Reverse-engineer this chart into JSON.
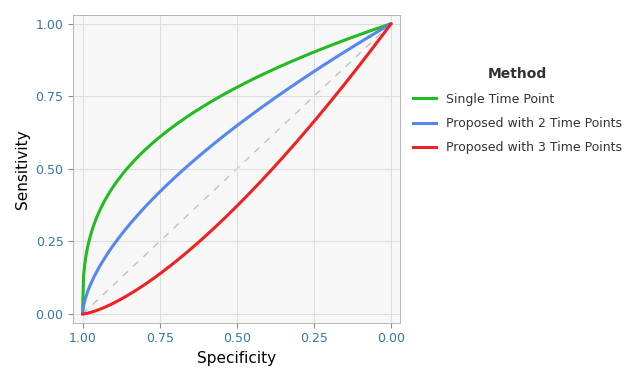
{
  "title": "",
  "xlabel": "Specificity",
  "ylabel": "Sensitivity",
  "xlim": [
    1.03,
    -0.03
  ],
  "ylim": [
    -0.03,
    1.03
  ],
  "xticks": [
    1.0,
    0.75,
    0.5,
    0.25,
    0.0
  ],
  "yticks": [
    0.0,
    0.25,
    0.5,
    0.75,
    1.0
  ],
  "background_color": "#FFFFFF",
  "plot_bg_color": "#F7F7F7",
  "grid_color": "#DDDDDD",
  "diagonal_color": "#BBBBBB",
  "curves": [
    {
      "name": "Single Time Point",
      "color": "#22BB22",
      "fill_alpha": 0.3,
      "power": 2.8,
      "ci_lower_power": 3.8,
      "ci_upper_power": 2.0
    },
    {
      "name": "Proposed with 2 Time Points",
      "color": "#5588EE",
      "fill_alpha": 0.28,
      "power": 1.6,
      "ci_lower_power": 2.1,
      "ci_upper_power": 1.2
    },
    {
      "name": "Proposed with 3 Time Points",
      "color": "#EE2222",
      "fill_alpha": 0.25,
      "power": 0.7,
      "ci_lower_power": 0.95,
      "ci_upper_power": 0.5
    }
  ],
  "legend_title": "Method",
  "legend_title_fontsize": 10,
  "legend_fontsize": 9,
  "axis_fontsize": 11,
  "tick_fontsize": 9
}
